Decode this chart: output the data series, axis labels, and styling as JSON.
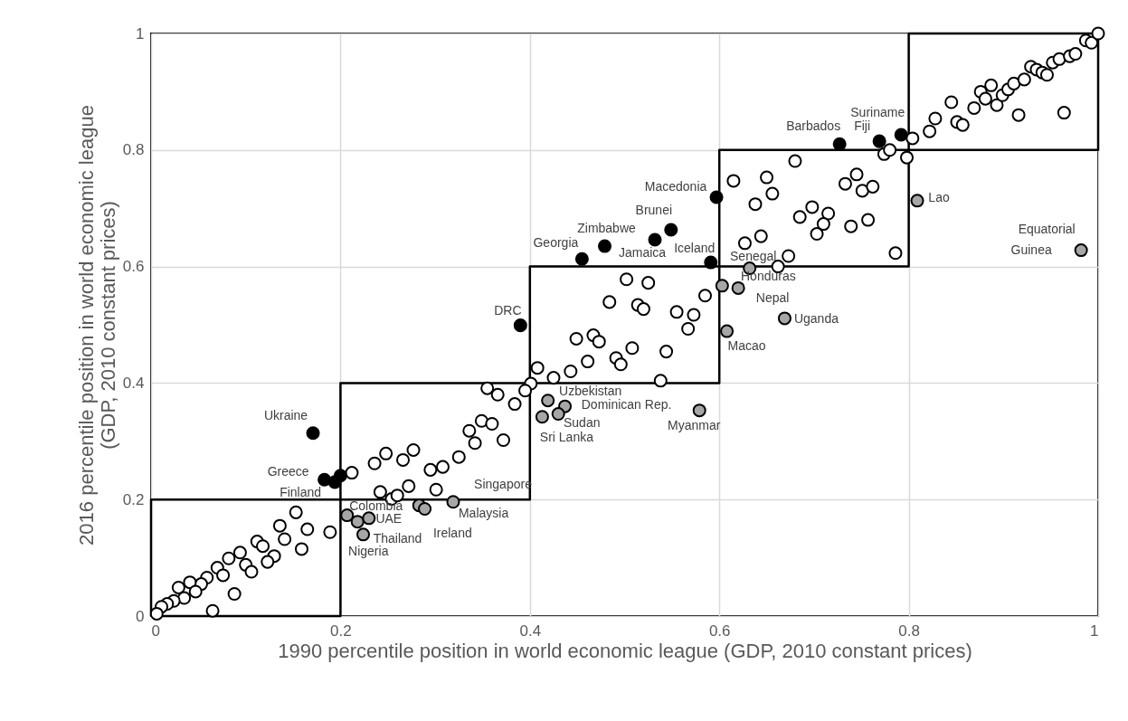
{
  "chart_data": {
    "type": "scatter",
    "xlabel": "1990 percentile position in world economic league (GDP, 2010 constant prices)",
    "ylabel": "2016 percentile position in world economic league\n(GDP, 2010 constant prices)",
    "xlim": [
      0,
      1
    ],
    "ylim": [
      0,
      1
    ],
    "xticks": [
      0,
      0.2,
      0.4,
      0.6,
      0.8,
      1
    ],
    "yticks": [
      0,
      0.2,
      0.4,
      0.6,
      0.8,
      1
    ],
    "grid": true,
    "marker": "circle",
    "series": [
      {
        "type": "line",
        "color": "#000000",
        "marker": "none",
        "line_style": "solid",
        "x": [
          0,
          0,
          0.2,
          0.2,
          0.4,
          0.4,
          0.6,
          0.6,
          0.8,
          0.8,
          1
        ],
        "values": [
          0,
          0.2,
          0.2,
          0.4,
          0.4,
          0.6,
          0.6,
          0.8,
          0.8,
          1,
          1
        ]
      },
      {
        "type": "line",
        "color": "#000000",
        "marker": "none",
        "line_style": "solid",
        "x": [
          0,
          0.2,
          0.2,
          0.4,
          0.4,
          0.6,
          0.6,
          0.8,
          0.8,
          1,
          1
        ],
        "values": [
          0,
          0,
          0.2,
          0.2,
          0.4,
          0.4,
          0.6,
          0.6,
          0.8,
          0.8,
          1
        ]
      },
      {
        "color": "#ffffff",
        "x": [
          0.212,
          0.236,
          0.248,
          0.266,
          0.277,
          0.295,
          0.308,
          0.325,
          0.336,
          0.242,
          0.254,
          0.26,
          0.272,
          0.301,
          0.153,
          0.136,
          0.165,
          0.189,
          0.141,
          0.159,
          0.112,
          0.118,
          0.13,
          0.123,
          0.094,
          0.1,
          0.106,
          0.082,
          0.07,
          0.076,
          0.059,
          0.053,
          0.041,
          0.047,
          0.029,
          0.035,
          0.088,
          0.065,
          0.024,
          0.017,
          0.011,
          0.006,
          0.449,
          0.467,
          0.473,
          0.508,
          0.491,
          0.496,
          0.544,
          0.567,
          0.461,
          0.443,
          0.425,
          0.408,
          0.401,
          0.538,
          0.395,
          0.355,
          0.366,
          0.384,
          0.349,
          0.36,
          0.342,
          0.372,
          0.502,
          0.525,
          0.484,
          0.514,
          0.52,
          0.585,
          0.555,
          0.573,
          0.615,
          0.65,
          0.656,
          0.638,
          0.627,
          0.644,
          0.662,
          0.68,
          0.745,
          0.733,
          0.751,
          0.762,
          0.698,
          0.715,
          0.685,
          0.71,
          0.703,
          0.739,
          0.757,
          0.786,
          0.673,
          0.774,
          0.78,
          0.798,
          0.804,
          0.822,
          0.828,
          0.845,
          0.851,
          0.857,
          0.869,
          0.876,
          0.881,
          0.887,
          0.893,
          0.899,
          0.905,
          0.911,
          0.916,
          0.922,
          0.929,
          0.935,
          0.941,
          0.946,
          0.952,
          0.959,
          0.964,
          0.97,
          0.976,
          0.987,
          0.993,
          1.0
        ],
        "values": [
          0.246,
          0.262,
          0.279,
          0.268,
          0.285,
          0.251,
          0.256,
          0.273,
          0.318,
          0.213,
          0.201,
          0.207,
          0.223,
          0.217,
          0.178,
          0.155,
          0.149,
          0.144,
          0.132,
          0.115,
          0.128,
          0.12,
          0.103,
          0.093,
          0.109,
          0.088,
          0.076,
          0.099,
          0.083,
          0.07,
          0.066,
          0.055,
          0.058,
          0.042,
          0.049,
          0.031,
          0.038,
          0.009,
          0.026,
          0.021,
          0.016,
          0.004,
          0.476,
          0.482,
          0.471,
          0.46,
          0.443,
          0.432,
          0.454,
          0.493,
          0.437,
          0.42,
          0.409,
          0.426,
          0.399,
          0.404,
          0.387,
          0.391,
          0.38,
          0.364,
          0.335,
          0.33,
          0.297,
          0.302,
          0.578,
          0.572,
          0.539,
          0.534,
          0.527,
          0.55,
          0.522,
          0.517,
          0.747,
          0.753,
          0.725,
          0.707,
          0.64,
          0.652,
          0.6,
          0.781,
          0.758,
          0.742,
          0.73,
          0.737,
          0.702,
          0.691,
          0.685,
          0.673,
          0.656,
          0.669,
          0.68,
          0.623,
          0.618,
          0.793,
          0.8,
          0.787,
          0.82,
          0.832,
          0.854,
          0.882,
          0.848,
          0.843,
          0.872,
          0.9,
          0.888,
          0.911,
          0.877,
          0.894,
          0.904,
          0.914,
          0.86,
          0.921,
          0.943,
          0.938,
          0.933,
          0.929,
          0.95,
          0.956,
          0.864,
          0.961,
          0.965,
          0.988,
          0.984,
          1.0
        ]
      },
      {
        "color": "#000000",
        "x": [
          0.171,
          0.183,
          0.194,
          0.2,
          0.39,
          0.597,
          0.549,
          0.532,
          0.479,
          0.455,
          0.591,
          0.727,
          0.769,
          0.792
        ],
        "values": [
          0.314,
          0.234,
          0.23,
          0.241,
          0.499,
          0.719,
          0.663,
          0.646,
          0.635,
          0.613,
          0.607,
          0.81,
          0.815,
          0.826
        ]
      },
      {
        "color": "#a6a6a6",
        "x": [
          0.207,
          0.218,
          0.23,
          0.224,
          0.283,
          0.289,
          0.319,
          0.419,
          0.437,
          0.43,
          0.413,
          0.579,
          0.608,
          0.603,
          0.62,
          0.632,
          0.669,
          0.809,
          0.982
        ],
        "values": [
          0.173,
          0.162,
          0.168,
          0.14,
          0.19,
          0.184,
          0.196,
          0.37,
          0.36,
          0.347,
          0.342,
          0.353,
          0.489,
          0.567,
          0.563,
          0.597,
          0.511,
          0.713,
          0.628
        ]
      }
    ],
    "annotations": [
      {
        "text": "Ukraine",
        "x": 0.171,
        "y": 0.314
      },
      {
        "text": "Greece",
        "x": 0.183,
        "y": 0.234
      },
      {
        "text": "Finland",
        "x": 0.194,
        "y": 0.23
      },
      {
        "text": "Colombia",
        "x": 0.207,
        "y": 0.173
      },
      {
        "text": "UAE",
        "x": 0.23,
        "y": 0.168
      },
      {
        "text": "Thailand",
        "x": 0.224,
        "y": 0.14
      },
      {
        "text": "Nigeria",
        "x": 0.218,
        "y": 0.162
      },
      {
        "text": "Ireland",
        "x": 0.283,
        "y": 0.19
      },
      {
        "text": "Malaysia",
        "x": 0.289,
        "y": 0.184
      },
      {
        "text": "Singapore",
        "x": 0.319,
        "y": 0.196
      },
      {
        "text": "Uzbekistan",
        "x": 0.419,
        "y": 0.37
      },
      {
        "text": "Dominican Rep.",
        "x": 0.437,
        "y": 0.36
      },
      {
        "text": "Sudan",
        "x": 0.43,
        "y": 0.347
      },
      {
        "text": "Sri Lanka",
        "x": 0.413,
        "y": 0.342
      },
      {
        "text": "Myanmar",
        "x": 0.579,
        "y": 0.353
      },
      {
        "text": "Macao",
        "x": 0.608,
        "y": 0.489
      },
      {
        "text": "DRC",
        "x": 0.39,
        "y": 0.499
      },
      {
        "text": "Georgia",
        "x": 0.455,
        "y": 0.613
      },
      {
        "text": "Zimbabwe",
        "x": 0.479,
        "y": 0.635
      },
      {
        "text": "Brunei",
        "x": 0.549,
        "y": 0.663
      },
      {
        "text": "Macedonia",
        "x": 0.597,
        "y": 0.719
      },
      {
        "text": "Jamaica",
        "x": 0.532,
        "y": 0.646
      },
      {
        "text": "Iceland",
        "x": 0.591,
        "y": 0.607
      },
      {
        "text": "Senegal",
        "x": 0.632,
        "y": 0.597
      },
      {
        "text": "Honduras",
        "x": 0.603,
        "y": 0.567
      },
      {
        "text": "Nepal",
        "x": 0.62,
        "y": 0.563
      },
      {
        "text": "Uganda",
        "x": 0.669,
        "y": 0.511
      },
      {
        "text": "Lao",
        "x": 0.809,
        "y": 0.713
      },
      {
        "text": "Equatorial",
        "x": 0.982,
        "y": 0.628
      },
      {
        "text": "Guinea",
        "x": 0.982,
        "y": 0.628
      },
      {
        "text": "Barbados",
        "x": 0.727,
        "y": 0.81
      },
      {
        "text": "Fiji",
        "x": 0.769,
        "y": 0.815
      },
      {
        "text": "Suriname",
        "x": 0.792,
        "y": 0.826
      }
    ]
  }
}
